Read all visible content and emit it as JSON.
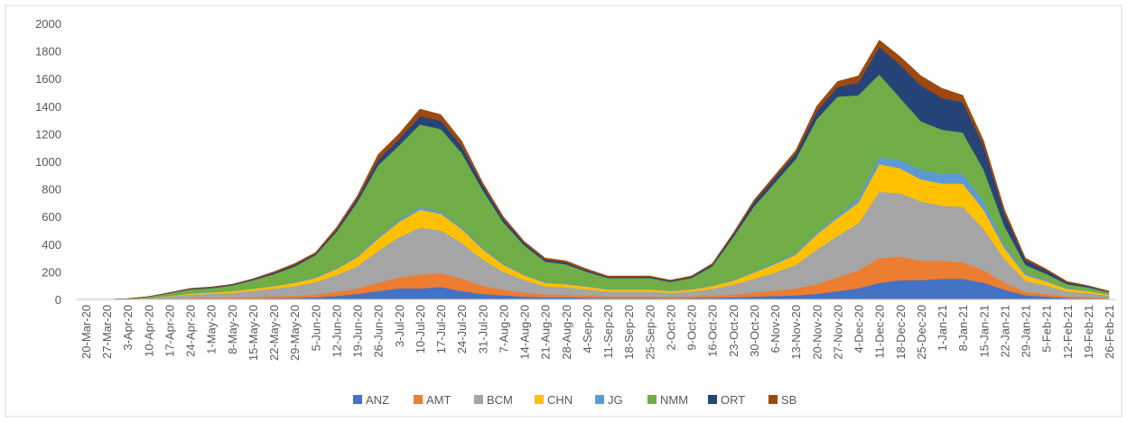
{
  "chart_data": {
    "type": "stacked_area",
    "categories": [
      "20-Mar-20",
      "27-Mar-20",
      "3-Apr-20",
      "10-Apr-20",
      "17-Apr-20",
      "24-Apr-20",
      "1-May-20",
      "8-May-20",
      "15-May-20",
      "22-May-20",
      "29-May-20",
      "5-Jun-20",
      "12-Jun-20",
      "19-Jun-20",
      "26-Jun-20",
      "3-Jul-20",
      "10-Jul-20",
      "17-Jul-20",
      "24-Jul-20",
      "31-Jul-20",
      "7-Aug-20",
      "14-Aug-20",
      "21-Aug-20",
      "28-Aug-20",
      "4-Sep-20",
      "11-Sep-20",
      "18-Sep-20",
      "25-Sep-20",
      "2-Oct-20",
      "9-Oct-20",
      "16-Oct-20",
      "23-Oct-20",
      "30-Oct-20",
      "6-Nov-20",
      "13-Nov-20",
      "20-Nov-20",
      "27-Nov-20",
      "4-Dec-20",
      "11-Dec-20",
      "18-Dec-20",
      "25-Dec-20",
      "1-Jan-21",
      "8-Jan-21",
      "15-Jan-21",
      "22-Jan-21",
      "29-Jan-21",
      "5-Feb-21",
      "12-Feb-21",
      "19-Feb-21",
      "26-Feb-21"
    ],
    "series": [
      {
        "name": "ANZ",
        "color": "#4472c4",
        "values": [
          0,
          0,
          0,
          0,
          0,
          2,
          3,
          3,
          5,
          8,
          10,
          15,
          25,
          40,
          60,
          80,
          80,
          90,
          60,
          40,
          30,
          20,
          15,
          15,
          12,
          10,
          10,
          10,
          8,
          10,
          12,
          15,
          20,
          25,
          30,
          40,
          60,
          80,
          120,
          140,
          140,
          150,
          150,
          120,
          70,
          30,
          20,
          10,
          8,
          5
        ]
      },
      {
        "name": "AMT",
        "color": "#ed7d31",
        "values": [
          0,
          0,
          0,
          2,
          5,
          8,
          10,
          10,
          12,
          15,
          15,
          20,
          30,
          40,
          60,
          80,
          100,
          100,
          90,
          60,
          40,
          30,
          20,
          18,
          15,
          12,
          12,
          12,
          10,
          12,
          15,
          20,
          30,
          40,
          50,
          70,
          100,
          130,
          180,
          170,
          140,
          130,
          120,
          90,
          50,
          25,
          20,
          12,
          10,
          6
        ]
      },
      {
        "name": "BCM",
        "color": "#a5a5a5",
        "values": [
          0,
          0,
          2,
          6,
          15,
          25,
          28,
          35,
          45,
          55,
          70,
          90,
          120,
          160,
          230,
          290,
          340,
          310,
          260,
          190,
          130,
          90,
          60,
          55,
          45,
          35,
          35,
          35,
          30,
          35,
          50,
          70,
          100,
          130,
          170,
          250,
          300,
          340,
          480,
          460,
          430,
          400,
          400,
          300,
          170,
          80,
          60,
          35,
          28,
          16
        ]
      },
      {
        "name": "CHN",
        "color": "#ffc000",
        "values": [
          0,
          0,
          0,
          2,
          5,
          8,
          10,
          12,
          15,
          18,
          25,
          30,
          45,
          65,
          90,
          110,
          130,
          120,
          100,
          75,
          50,
          35,
          25,
          22,
          20,
          15,
          15,
          15,
          12,
          15,
          20,
          30,
          45,
          60,
          75,
          110,
          130,
          150,
          200,
          180,
          160,
          160,
          170,
          140,
          80,
          40,
          30,
          18,
          14,
          8
        ]
      },
      {
        "name": "JG",
        "color": "#5b9bd5",
        "values": [
          0,
          0,
          0,
          0,
          0,
          1,
          1,
          1,
          2,
          2,
          3,
          5,
          8,
          10,
          12,
          15,
          18,
          15,
          12,
          10,
          8,
          5,
          4,
          4,
          3,
          3,
          3,
          3,
          2,
          3,
          3,
          5,
          8,
          10,
          12,
          15,
          20,
          30,
          50,
          60,
          70,
          70,
          70,
          60,
          30,
          15,
          10,
          5,
          4,
          3
        ]
      },
      {
        "name": "NMM",
        "color": "#70ad47",
        "values": [
          0,
          0,
          3,
          8,
          20,
          28,
          30,
          40,
          60,
          85,
          115,
          160,
          260,
          390,
          520,
          540,
          600,
          600,
          540,
          420,
          300,
          210,
          150,
          140,
          105,
          80,
          80,
          80,
          65,
          80,
          140,
          310,
          470,
          580,
          680,
          820,
          860,
          750,
          600,
          450,
          350,
          320,
          300,
          230,
          130,
          60,
          45,
          30,
          22,
          14
        ]
      },
      {
        "name": "ORT",
        "color": "#264478",
        "values": [
          0,
          0,
          0,
          2,
          3,
          5,
          5,
          6,
          7,
          10,
          12,
          10,
          15,
          25,
          40,
          45,
          60,
          60,
          50,
          35,
          25,
          18,
          14,
          14,
          10,
          8,
          8,
          8,
          7,
          8,
          12,
          18,
          30,
          35,
          40,
          55,
          70,
          90,
          200,
          240,
          260,
          230,
          220,
          170,
          90,
          35,
          25,
          12,
          9,
          5
        ]
      },
      {
        "name": "SB",
        "color": "#9e480e",
        "values": [
          0,
          0,
          0,
          0,
          2,
          3,
          3,
          3,
          4,
          7,
          10,
          10,
          17,
          20,
          38,
          40,
          52,
          45,
          38,
          20,
          17,
          12,
          12,
          12,
          10,
          7,
          7,
          7,
          6,
          7,
          8,
          12,
          17,
          20,
          23,
          40,
          40,
          50,
          50,
          60,
          70,
          70,
          50,
          40,
          30,
          15,
          10,
          8,
          5,
          3
        ]
      }
    ],
    "ylim": [
      0,
      2000
    ],
    "yticks": [
      0,
      200,
      400,
      600,
      800,
      1000,
      1200,
      1400,
      1600,
      1800,
      2000
    ],
    "grid": false,
    "legend": "bottom"
  }
}
